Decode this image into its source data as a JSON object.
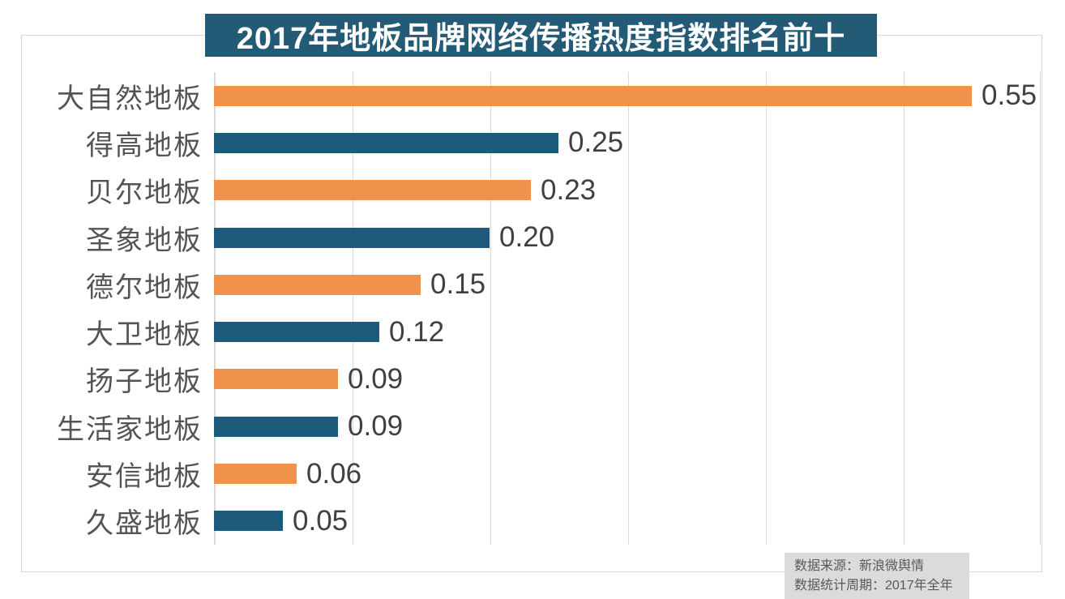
{
  "title": "2017年地板品牌网络传播热度指数排名前十",
  "source_note": {
    "line1": "数据来源：新浪微舆情",
    "line2": "数据统计周期：2017年全年"
  },
  "chart_data": {
    "type": "bar",
    "orientation": "horizontal",
    "title": "2017年地板品牌网络传播热度指数排名前十",
    "categories": [
      "大自然地板",
      "得高地板",
      "贝尔地板",
      "圣象地板",
      "德尔地板",
      "大卫地板",
      "扬子地板",
      "生活家地板",
      "安信地板",
      "久盛地板"
    ],
    "values": [
      0.55,
      0.25,
      0.23,
      0.2,
      0.15,
      0.12,
      0.09,
      0.09,
      0.06,
      0.05
    ],
    "value_labels": [
      "0.55",
      "0.25",
      "0.23",
      "0.20",
      "0.15",
      "0.12",
      "0.09",
      "0.09",
      "0.06",
      "0.05"
    ],
    "xlabel": "",
    "ylabel": "",
    "xlim": [
      0,
      0.6
    ],
    "gridline_interval": 0.1,
    "grid": true,
    "tick_labels_visible": false,
    "legend": false,
    "bar_colors_alternate": [
      "#F0924B",
      "#1E5A7C"
    ]
  },
  "colors": {
    "orange": "#F0924B",
    "blue": "#1E5A7C",
    "banner_bg": "#235B77",
    "banner_text": "#FFFFFF",
    "gridline": "#D9D9D9",
    "category_label": "#545454",
    "value_label": "#404040",
    "source_bg": "#DBDBDB",
    "source_text": "#595959"
  }
}
